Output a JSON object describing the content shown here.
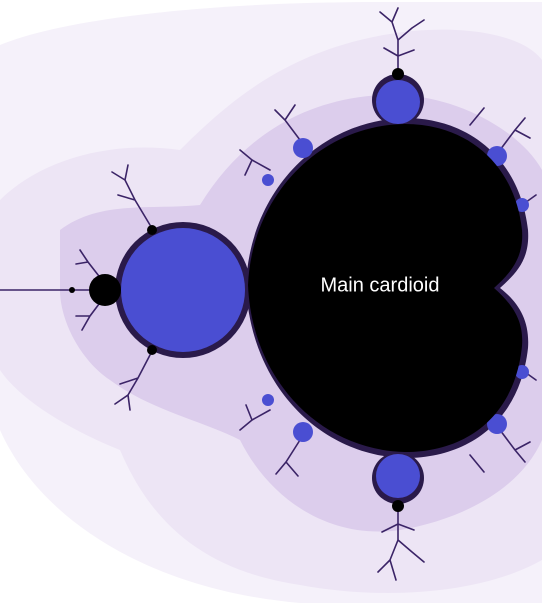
{
  "figure": {
    "label": "Main cardioid",
    "colors": {
      "background": "#ffffff",
      "halo_outer": "#f5f1fa",
      "halo_mid": "#ede5f5",
      "halo_inner": "#dccdec",
      "filament": "#3b2467",
      "bulb": "#4a4ed2",
      "interior": "#000000",
      "label": "#ffffff"
    }
  }
}
